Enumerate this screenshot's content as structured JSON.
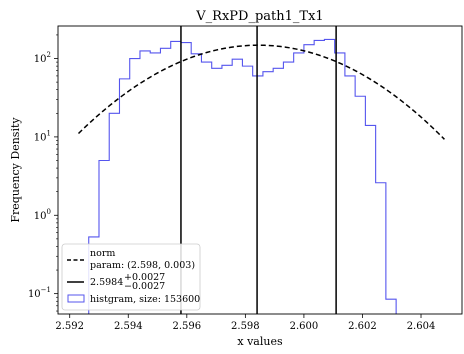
{
  "chart_data": {
    "type": "histogram",
    "title": "V_RxPD_path1_Tx1",
    "xlabel": "x values",
    "ylabel": "Frequency Density",
    "y_scale": "log",
    "xlim": [
      2.5916,
      2.6054
    ],
    "ylim": [
      0.055,
      260
    ],
    "x_ticks": [
      2.592,
      2.594,
      2.596,
      2.598,
      2.6,
      2.602,
      2.604
    ],
    "x_tick_labels": [
      "2.592",
      "2.594",
      "2.596",
      "2.598",
      "2.600",
      "2.602",
      "2.604"
    ],
    "y_ticks": [
      0.1,
      1,
      10,
      100
    ],
    "y_tick_base": "10",
    "y_tick_exponents": [
      "−1",
      "0",
      "1",
      "2"
    ],
    "histogram": {
      "color": "#5555ee",
      "bin_edges": [
        2.5923,
        2.59265,
        2.593,
        2.59335,
        2.5937,
        2.59405,
        2.5944,
        2.59475,
        2.5951,
        2.59545,
        2.5958,
        2.59615,
        2.5965,
        2.59685,
        2.5972,
        2.59755,
        2.5979,
        2.59825,
        2.5986,
        2.59895,
        2.5993,
        2.59965,
        2.6,
        2.60035,
        2.6007,
        2.60105,
        2.6014,
        2.60175,
        2.6021,
        2.60245,
        2.6028,
        2.60315,
        2.6035,
        2.60385,
        2.6042,
        2.60455
      ],
      "densities": [
        0.035,
        0.53,
        5,
        20,
        55,
        100,
        125,
        118,
        135,
        165,
        160,
        115,
        90,
        75,
        82,
        98,
        80,
        60,
        68,
        75,
        90,
        118,
        150,
        170,
        175,
        118,
        60,
        33,
        14,
        2.6,
        0.085,
        0.03,
        0.02,
        0.02,
        0.02
      ]
    },
    "fit": {
      "type": "norm",
      "mu": 2.59845,
      "sigma": 0.0027,
      "peak_density": 148,
      "x_range": [
        2.5923,
        2.6048
      ],
      "color": "#000000"
    },
    "vlines": [
      2.5958,
      2.5984,
      2.6011
    ],
    "legend": {
      "placement": "lower-left",
      "items": [
        {
          "kind": "dashed-line",
          "line1": "norm",
          "line2": "param: (2.598, 0.003)"
        },
        {
          "kind": "solid-line",
          "base": "2.5984",
          "sup": "+0.0027",
          "sub": "−0.0027"
        },
        {
          "kind": "patch",
          "label": "histgram, size: 153600"
        }
      ]
    }
  }
}
